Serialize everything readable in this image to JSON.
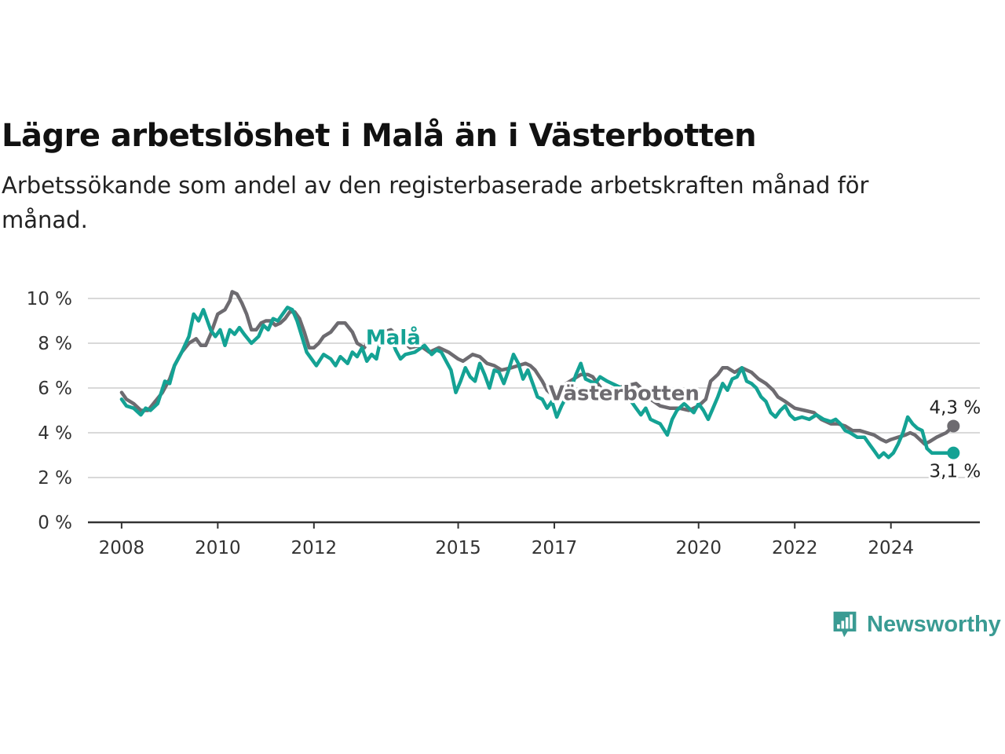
{
  "header": {
    "title": "Lägre arbetslöshet i Malå än i Västerbotten",
    "subtitle": "Arbetssökande som andel av den registerbaserade arbetskraften månad för månad."
  },
  "brand": {
    "name": "Newsworthy",
    "icon": "bar-chart-speech-bubble-icon",
    "color": "#3a9b93"
  },
  "chart_data": {
    "type": "line",
    "ylim": [
      0,
      10
    ],
    "yticks": [
      0,
      2,
      4,
      6,
      8,
      10
    ],
    "ytick_labels": [
      "0 %",
      "2 %",
      "4 %",
      "6 %",
      "8 %",
      "10 %"
    ],
    "xlim": [
      2007.3,
      2025.85
    ],
    "xticks": [
      2008,
      2010,
      2012,
      2015,
      2017,
      2020,
      2022,
      2024
    ],
    "xtick_labels": [
      "2008",
      "2010",
      "2012",
      "2015",
      "2017",
      "2020",
      "2022",
      "2024"
    ],
    "grid": true,
    "series": [
      {
        "name": "Västerbotten",
        "color": "#6d6b70",
        "end_label": "4,3 %",
        "points": [
          [
            2008.0,
            5.8
          ],
          [
            2008.1,
            5.5
          ],
          [
            2008.25,
            5.3
          ],
          [
            2008.4,
            5.0
          ],
          [
            2008.55,
            5.0
          ],
          [
            2008.7,
            5.4
          ],
          [
            2008.85,
            5.8
          ],
          [
            2009.0,
            6.4
          ],
          [
            2009.1,
            7.0
          ],
          [
            2009.25,
            7.6
          ],
          [
            2009.4,
            8.0
          ],
          [
            2009.55,
            8.2
          ],
          [
            2009.65,
            7.9
          ],
          [
            2009.75,
            7.9
          ],
          [
            2009.85,
            8.4
          ],
          [
            2010.0,
            9.3
          ],
          [
            2010.15,
            9.5
          ],
          [
            2010.25,
            9.9
          ],
          [
            2010.3,
            10.3
          ],
          [
            2010.4,
            10.2
          ],
          [
            2010.5,
            9.8
          ],
          [
            2010.6,
            9.3
          ],
          [
            2010.7,
            8.6
          ],
          [
            2010.8,
            8.6
          ],
          [
            2010.9,
            8.9
          ],
          [
            2011.0,
            9.0
          ],
          [
            2011.1,
            9.0
          ],
          [
            2011.2,
            8.8
          ],
          [
            2011.3,
            8.9
          ],
          [
            2011.4,
            9.1
          ],
          [
            2011.5,
            9.4
          ],
          [
            2011.6,
            9.4
          ],
          [
            2011.7,
            9.1
          ],
          [
            2011.8,
            8.5
          ],
          [
            2011.9,
            7.8
          ],
          [
            2012.0,
            7.8
          ],
          [
            2012.1,
            8.0
          ],
          [
            2012.2,
            8.3
          ],
          [
            2012.35,
            8.5
          ],
          [
            2012.5,
            8.9
          ],
          [
            2012.65,
            8.9
          ],
          [
            2012.8,
            8.5
          ],
          [
            2012.9,
            8.0
          ],
          [
            2013.05,
            7.8
          ],
          [
            2013.15,
            8.2
          ],
          [
            2013.3,
            8.3
          ],
          [
            2013.45,
            8.5
          ],
          [
            2013.6,
            8.6
          ],
          [
            2013.8,
            8.2
          ],
          [
            2014.0,
            7.8
          ],
          [
            2014.2,
            7.9
          ],
          [
            2014.4,
            7.6
          ],
          [
            2014.6,
            7.8
          ],
          [
            2014.8,
            7.6
          ],
          [
            2015.0,
            7.3
          ],
          [
            2015.1,
            7.2
          ],
          [
            2015.3,
            7.5
          ],
          [
            2015.45,
            7.4
          ],
          [
            2015.6,
            7.1
          ],
          [
            2015.75,
            7.0
          ],
          [
            2015.9,
            6.8
          ],
          [
            2016.1,
            6.9
          ],
          [
            2016.25,
            7.0
          ],
          [
            2016.4,
            7.1
          ],
          [
            2016.5,
            7.0
          ],
          [
            2016.6,
            6.8
          ],
          [
            2016.75,
            6.3
          ],
          [
            2016.85,
            5.9
          ],
          [
            2016.95,
            5.7
          ],
          [
            2017.1,
            6.0
          ],
          [
            2017.25,
            6.2
          ],
          [
            2017.4,
            6.4
          ],
          [
            2017.55,
            6.6
          ],
          [
            2017.7,
            6.6
          ],
          [
            2017.8,
            6.5
          ],
          [
            2017.9,
            6.2
          ],
          [
            2018.0,
            5.9
          ],
          [
            2018.1,
            5.7
          ],
          [
            2018.3,
            6.0
          ],
          [
            2018.5,
            6.1
          ],
          [
            2018.7,
            6.2
          ],
          [
            2018.85,
            5.9
          ],
          [
            2019.0,
            5.5
          ],
          [
            2019.2,
            5.2
          ],
          [
            2019.4,
            5.1
          ],
          [
            2019.6,
            5.1
          ],
          [
            2019.8,
            5.0
          ],
          [
            2020.0,
            5.2
          ],
          [
            2020.15,
            5.5
          ],
          [
            2020.25,
            6.3
          ],
          [
            2020.4,
            6.6
          ],
          [
            2020.5,
            6.9
          ],
          [
            2020.6,
            6.9
          ],
          [
            2020.75,
            6.7
          ],
          [
            2020.9,
            6.9
          ],
          [
            2021.1,
            6.7
          ],
          [
            2021.25,
            6.4
          ],
          [
            2021.4,
            6.2
          ],
          [
            2021.55,
            5.9
          ],
          [
            2021.65,
            5.6
          ],
          [
            2021.8,
            5.4
          ],
          [
            2022.0,
            5.1
          ],
          [
            2022.2,
            5.0
          ],
          [
            2022.4,
            4.9
          ],
          [
            2022.55,
            4.6
          ],
          [
            2022.75,
            4.4
          ],
          [
            2022.9,
            4.4
          ],
          [
            2023.05,
            4.3
          ],
          [
            2023.2,
            4.1
          ],
          [
            2023.35,
            4.1
          ],
          [
            2023.5,
            4.0
          ],
          [
            2023.65,
            3.9
          ],
          [
            2023.8,
            3.7
          ],
          [
            2023.9,
            3.6
          ],
          [
            2024.0,
            3.7
          ],
          [
            2024.15,
            3.8
          ],
          [
            2024.3,
            3.9
          ],
          [
            2024.4,
            4.0
          ],
          [
            2024.5,
            3.9
          ],
          [
            2024.6,
            3.7
          ],
          [
            2024.7,
            3.5
          ],
          [
            2024.8,
            3.6
          ],
          [
            2024.95,
            3.8
          ],
          [
            2025.05,
            3.9
          ],
          [
            2025.15,
            4.0
          ],
          [
            2025.3,
            4.3
          ]
        ]
      },
      {
        "name": "Malå",
        "color": "#14a294",
        "end_label": "3,1 %",
        "points": [
          [
            2008.0,
            5.5
          ],
          [
            2008.1,
            5.2
          ],
          [
            2008.25,
            5.1
          ],
          [
            2008.4,
            4.8
          ],
          [
            2008.5,
            5.1
          ],
          [
            2008.6,
            5.0
          ],
          [
            2008.75,
            5.3
          ],
          [
            2008.9,
            6.3
          ],
          [
            2009.0,
            6.2
          ],
          [
            2009.1,
            7.0
          ],
          [
            2009.25,
            7.6
          ],
          [
            2009.4,
            8.3
          ],
          [
            2009.5,
            9.3
          ],
          [
            2009.6,
            9.0
          ],
          [
            2009.7,
            9.5
          ],
          [
            2009.85,
            8.6
          ],
          [
            2009.95,
            8.3
          ],
          [
            2010.05,
            8.6
          ],
          [
            2010.15,
            7.9
          ],
          [
            2010.25,
            8.6
          ],
          [
            2010.35,
            8.4
          ],
          [
            2010.45,
            8.7
          ],
          [
            2010.55,
            8.4
          ],
          [
            2010.7,
            8.0
          ],
          [
            2010.85,
            8.3
          ],
          [
            2010.95,
            8.8
          ],
          [
            2011.05,
            8.6
          ],
          [
            2011.15,
            9.1
          ],
          [
            2011.25,
            9.0
          ],
          [
            2011.35,
            9.3
          ],
          [
            2011.45,
            9.6
          ],
          [
            2011.55,
            9.5
          ],
          [
            2011.65,
            9.0
          ],
          [
            2011.75,
            8.3
          ],
          [
            2011.85,
            7.6
          ],
          [
            2011.95,
            7.3
          ],
          [
            2012.05,
            7.0
          ],
          [
            2012.2,
            7.5
          ],
          [
            2012.35,
            7.3
          ],
          [
            2012.45,
            7.0
          ],
          [
            2012.55,
            7.4
          ],
          [
            2012.7,
            7.1
          ],
          [
            2012.8,
            7.6
          ],
          [
            2012.9,
            7.4
          ],
          [
            2013.0,
            7.8
          ],
          [
            2013.1,
            7.2
          ],
          [
            2013.2,
            7.5
          ],
          [
            2013.3,
            7.3
          ],
          [
            2013.4,
            8.3
          ],
          [
            2013.5,
            8.5
          ],
          [
            2013.6,
            8.3
          ],
          [
            2013.7,
            7.7
          ],
          [
            2013.8,
            7.3
          ],
          [
            2013.9,
            7.5
          ],
          [
            2014.1,
            7.6
          ],
          [
            2014.3,
            7.9
          ],
          [
            2014.45,
            7.5
          ],
          [
            2014.55,
            7.7
          ],
          [
            2014.65,
            7.6
          ],
          [
            2014.75,
            7.2
          ],
          [
            2014.85,
            6.8
          ],
          [
            2014.95,
            5.8
          ],
          [
            2015.05,
            6.3
          ],
          [
            2015.15,
            6.9
          ],
          [
            2015.25,
            6.5
          ],
          [
            2015.35,
            6.3
          ],
          [
            2015.45,
            7.1
          ],
          [
            2015.55,
            6.6
          ],
          [
            2015.65,
            6.0
          ],
          [
            2015.75,
            6.8
          ],
          [
            2015.85,
            6.7
          ],
          [
            2015.95,
            6.2
          ],
          [
            2016.05,
            6.8
          ],
          [
            2016.15,
            7.5
          ],
          [
            2016.25,
            7.1
          ],
          [
            2016.35,
            6.4
          ],
          [
            2016.45,
            6.8
          ],
          [
            2016.55,
            6.2
          ],
          [
            2016.65,
            5.6
          ],
          [
            2016.75,
            5.5
          ],
          [
            2016.85,
            5.1
          ],
          [
            2016.95,
            5.4
          ],
          [
            2017.05,
            4.7
          ],
          [
            2017.15,
            5.2
          ],
          [
            2017.25,
            5.6
          ],
          [
            2017.35,
            6.0
          ],
          [
            2017.45,
            6.6
          ],
          [
            2017.55,
            7.1
          ],
          [
            2017.65,
            6.4
          ],
          [
            2017.75,
            6.3
          ],
          [
            2017.85,
            6.2
          ],
          [
            2017.95,
            6.5
          ],
          [
            2018.1,
            6.3
          ],
          [
            2018.3,
            6.1
          ],
          [
            2018.5,
            5.9
          ],
          [
            2018.6,
            5.4
          ],
          [
            2018.7,
            5.1
          ],
          [
            2018.8,
            4.8
          ],
          [
            2018.9,
            5.1
          ],
          [
            2019.0,
            4.6
          ],
          [
            2019.1,
            4.5
          ],
          [
            2019.2,
            4.4
          ],
          [
            2019.35,
            3.9
          ],
          [
            2019.45,
            4.6
          ],
          [
            2019.55,
            5.0
          ],
          [
            2019.7,
            5.3
          ],
          [
            2019.8,
            5.1
          ],
          [
            2019.9,
            4.9
          ],
          [
            2020.0,
            5.3
          ],
          [
            2020.1,
            5.0
          ],
          [
            2020.2,
            4.6
          ],
          [
            2020.3,
            5.1
          ],
          [
            2020.4,
            5.6
          ],
          [
            2020.5,
            6.2
          ],
          [
            2020.6,
            5.9
          ],
          [
            2020.7,
            6.4
          ],
          [
            2020.8,
            6.5
          ],
          [
            2020.9,
            6.9
          ],
          [
            2021.0,
            6.3
          ],
          [
            2021.1,
            6.2
          ],
          [
            2021.2,
            6.0
          ],
          [
            2021.3,
            5.6
          ],
          [
            2021.4,
            5.4
          ],
          [
            2021.5,
            4.9
          ],
          [
            2021.6,
            4.7
          ],
          [
            2021.7,
            5.0
          ],
          [
            2021.8,
            5.2
          ],
          [
            2021.9,
            4.8
          ],
          [
            2022.0,
            4.6
          ],
          [
            2022.15,
            4.7
          ],
          [
            2022.3,
            4.6
          ],
          [
            2022.45,
            4.8
          ],
          [
            2022.6,
            4.6
          ],
          [
            2022.75,
            4.5
          ],
          [
            2022.85,
            4.6
          ],
          [
            2022.95,
            4.4
          ],
          [
            2023.05,
            4.1
          ],
          [
            2023.15,
            4.0
          ],
          [
            2023.3,
            3.8
          ],
          [
            2023.45,
            3.8
          ],
          [
            2023.55,
            3.5
          ],
          [
            2023.65,
            3.2
          ],
          [
            2023.75,
            2.9
          ],
          [
            2023.85,
            3.1
          ],
          [
            2023.95,
            2.9
          ],
          [
            2024.05,
            3.1
          ],
          [
            2024.15,
            3.5
          ],
          [
            2024.25,
            4.0
          ],
          [
            2024.35,
            4.7
          ],
          [
            2024.45,
            4.4
          ],
          [
            2024.55,
            4.2
          ],
          [
            2024.65,
            4.1
          ],
          [
            2024.75,
            3.3
          ],
          [
            2024.85,
            3.1
          ],
          [
            2025.0,
            3.1
          ],
          [
            2025.15,
            3.1
          ],
          [
            2025.3,
            3.1
          ]
        ]
      }
    ],
    "series_labels": [
      {
        "series": "Malå",
        "x": 2013.65,
        "y": 7.95
      },
      {
        "series": "Västerbotten",
        "x": 2018.45,
        "y": 5.45
      }
    ]
  }
}
